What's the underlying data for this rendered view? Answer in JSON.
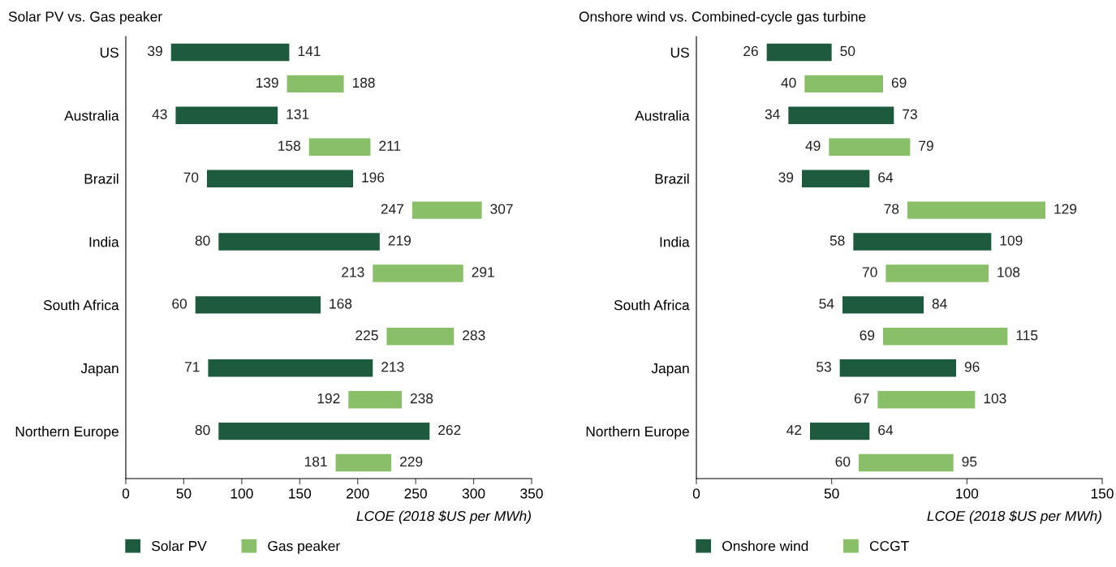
{
  "chart_data": [
    {
      "type": "bar",
      "orientation": "horizontal",
      "title": "Solar PV vs. Gas peaker",
      "xlabel": "LCOE (2018 $US per MWh)",
      "categories": [
        "US",
        null,
        "Australia",
        null,
        "Brazil",
        null,
        "India",
        null,
        "South Africa",
        null,
        "Japan",
        null,
        "Northern Europe",
        null
      ],
      "series": [
        {
          "name": "Solar PV",
          "color": "#1e5a3e",
          "base": [
            39,
            null,
            43,
            null,
            70,
            null,
            80,
            null,
            60,
            null,
            71,
            null,
            80,
            null
          ],
          "values": [
            102,
            null,
            88,
            null,
            126,
            null,
            139,
            null,
            108,
            null,
            142,
            null,
            182,
            null
          ],
          "value_labels": [
            [
              "39",
              "141"
            ],
            null,
            [
              "43",
              "131"
            ],
            null,
            [
              "70",
              "196"
            ],
            null,
            [
              "80",
              "219"
            ],
            null,
            [
              "60",
              "168"
            ],
            null,
            [
              "71",
              "213"
            ],
            null,
            [
              "80",
              "262"
            ],
            null
          ]
        },
        {
          "name": "Gas peaker",
          "color": "#8abf6a",
          "base": [
            null,
            139,
            null,
            158,
            null,
            247,
            null,
            213,
            null,
            225,
            null,
            192,
            null,
            181
          ],
          "values": [
            null,
            49,
            null,
            53,
            null,
            60,
            null,
            78,
            null,
            58,
            null,
            46,
            null,
            48
          ],
          "value_labels": [
            null,
            [
              "139",
              "188"
            ],
            null,
            [
              "158",
              "211"
            ],
            null,
            [
              "247",
              "307"
            ],
            null,
            [
              "213",
              "291"
            ],
            null,
            [
              "225",
              "283"
            ],
            null,
            [
              "192",
              "238"
            ],
            null,
            [
              "181",
              "229"
            ]
          ]
        }
      ],
      "xlim": [
        0,
        350
      ],
      "xticks": [
        0,
        50,
        100,
        150,
        200,
        250,
        300,
        350
      ],
      "grid": false,
      "legend": "bottom left"
    },
    {
      "type": "bar",
      "orientation": "horizontal",
      "title": "Onshore wind vs. Combined-cycle gas turbine",
      "xlabel": "LCOE (2018 $US per MWh)",
      "categories": [
        "US",
        null,
        "Australia",
        null,
        "Brazil",
        null,
        "India",
        null,
        "South Africa",
        null,
        "Japan",
        null,
        "Northern Europe",
        null
      ],
      "series": [
        {
          "name": "Onshore wind",
          "color": "#1e5a3e",
          "base": [
            26,
            null,
            34,
            null,
            39,
            null,
            58,
            null,
            54,
            null,
            53,
            null,
            42,
            null
          ],
          "values": [
            24,
            null,
            39,
            null,
            25,
            null,
            51,
            null,
            30,
            null,
            43,
            null,
            22,
            null
          ],
          "value_labels": [
            [
              "26",
              "50"
            ],
            null,
            [
              "34",
              "73"
            ],
            null,
            [
              "39",
              "64"
            ],
            null,
            [
              "58",
              "109"
            ],
            null,
            [
              "54",
              "84"
            ],
            null,
            [
              "53",
              "96"
            ],
            null,
            [
              "42",
              "64"
            ],
            null
          ]
        },
        {
          "name": "CCGT",
          "color": "#8abf6a",
          "base": [
            null,
            40,
            null,
            49,
            null,
            78,
            null,
            70,
            null,
            69,
            null,
            67,
            null,
            60
          ],
          "values": [
            null,
            29,
            null,
            30,
            null,
            51,
            null,
            38,
            null,
            46,
            null,
            36,
            null,
            35
          ],
          "value_labels": [
            null,
            [
              "40",
              "69"
            ],
            null,
            [
              "49",
              "79"
            ],
            null,
            [
              "78",
              "129"
            ],
            null,
            [
              "70",
              "108"
            ],
            null,
            [
              "69",
              "115"
            ],
            null,
            [
              "67",
              "103"
            ],
            null,
            [
              "60",
              "95"
            ]
          ]
        }
      ],
      "xlim": [
        0,
        150
      ],
      "xticks": [
        0,
        50,
        100,
        150
      ],
      "grid": false,
      "legend": "bottom left"
    }
  ]
}
